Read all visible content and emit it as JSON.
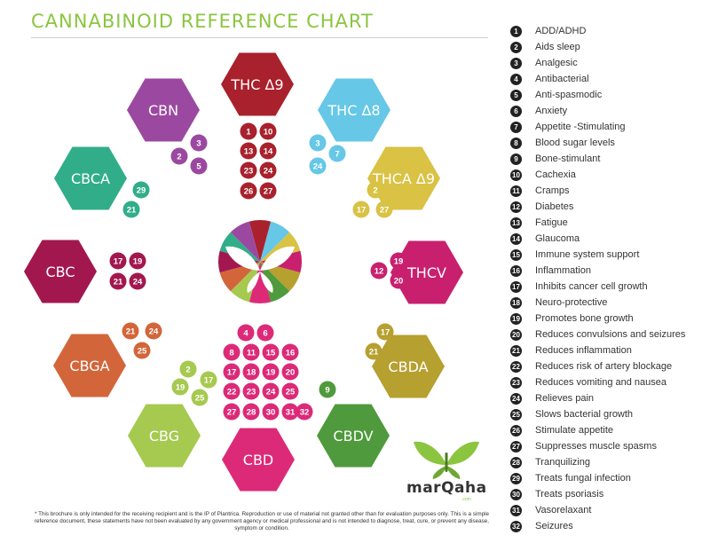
{
  "title": "CANNABINOID REFERENCE CHART",
  "cannabinoids": [
    {
      "name": "THC Δ9",
      "color": "#a8212c",
      "benefits": [
        1,
        10,
        13,
        14,
        23,
        24,
        26,
        27
      ]
    },
    {
      "name": "THC Δ8",
      "color": "#66c7e6",
      "benefits": [
        3,
        7,
        24
      ]
    },
    {
      "name": "THCA Δ9",
      "color": "#d9c244",
      "benefits": [
        2,
        17,
        27
      ]
    },
    {
      "name": "THCV",
      "color": "#c8206e",
      "benefits": [
        12,
        19,
        20
      ]
    },
    {
      "name": "CBDA",
      "color": "#b6a030",
      "benefits": [
        17,
        21
      ]
    },
    {
      "name": "CBDV",
      "color": "#4f9a3c",
      "benefits": [
        9
      ]
    },
    {
      "name": "CBD",
      "color": "#dc2a78",
      "benefits": [
        4,
        6,
        8,
        11,
        15,
        16,
        17,
        18,
        19,
        20,
        22,
        23,
        24,
        25,
        27,
        28,
        30,
        31,
        32
      ]
    },
    {
      "name": "CBG",
      "color": "#a6c950",
      "benefits": [
        2,
        17,
        19,
        25
      ]
    },
    {
      "name": "CBGA",
      "color": "#d2663a",
      "benefits": [
        21,
        24,
        25
      ]
    },
    {
      "name": "CBC",
      "color": "#a3174f",
      "benefits": [
        17,
        19,
        21,
        24
      ]
    },
    {
      "name": "CBCA",
      "color": "#32ad8a",
      "benefits": [
        21,
        29
      ]
    },
    {
      "name": "CBN",
      "color": "#9b49a0",
      "benefits": [
        2,
        3,
        5
      ]
    }
  ],
  "legend": [
    {
      "num": 1,
      "label": "ADD/ADHD"
    },
    {
      "num": 2,
      "label": "Aids sleep"
    },
    {
      "num": 3,
      "label": "Analgesic"
    },
    {
      "num": 4,
      "label": "Antibacterial"
    },
    {
      "num": 5,
      "label": "Anti-spasmodic"
    },
    {
      "num": 6,
      "label": "Anxiety"
    },
    {
      "num": 7,
      "label": "Appetite -Stimulating"
    },
    {
      "num": 8,
      "label": "Blood sugar levels"
    },
    {
      "num": 9,
      "label": "Bone-stimulant"
    },
    {
      "num": 10,
      "label": "Cachexia"
    },
    {
      "num": 11,
      "label": "Cramps"
    },
    {
      "num": 12,
      "label": "Diabetes"
    },
    {
      "num": 13,
      "label": "Fatigue"
    },
    {
      "num": 14,
      "label": "Glaucoma"
    },
    {
      "num": 15,
      "label": "Immune system support"
    },
    {
      "num": 16,
      "label": "Inflammation"
    },
    {
      "num": 17,
      "label": "Inhibits cancer cell growth"
    },
    {
      "num": 18,
      "label": "Neuro-protective"
    },
    {
      "num": 19,
      "label": "Promotes bone growth"
    },
    {
      "num": 20,
      "label": "Reduces convulsions and seizures"
    },
    {
      "num": 21,
      "label": "Reduces inflammation"
    },
    {
      "num": 22,
      "label": "Reduces risk of artery blockage"
    },
    {
      "num": 23,
      "label": "Reduces vomiting and nausea"
    },
    {
      "num": 24,
      "label": "Relieves pain"
    },
    {
      "num": 25,
      "label": "Slows bacterial growth"
    },
    {
      "num": 26,
      "label": "Stimulate appetite"
    },
    {
      "num": 27,
      "label": "Suppresses muscle spasms"
    },
    {
      "num": 28,
      "label": "Tranquilizing"
    },
    {
      "num": 29,
      "label": "Treats fungal infection"
    },
    {
      "num": 30,
      "label": "Treats psoriasis"
    },
    {
      "num": 31,
      "label": "Vasorelaxant"
    },
    {
      "num": 32,
      "label": "Seizures"
    }
  ],
  "footnote": "* This brochure is only intended for the receiving recipient and is the IP of Plantrica. Reproduction or use of material not granted other than for evaluation purposes only. This is a simple reference document, these statements have not been evaluated by any government agency or medical professional and  is not intended to diagnose, treat, cure, or prevent any disease, symptom or condition.",
  "brand": {
    "name": "marQaha",
    "domain": ".com",
    "color": "#8bc53f"
  },
  "flower_colors": [
    "#a8212c",
    "#66c7e6",
    "#d9c244",
    "#c8206e",
    "#b6a030",
    "#4f9a3c",
    "#dc2a78",
    "#a6c950",
    "#d2663a",
    "#a3174f",
    "#32ad8a",
    "#9b49a0"
  ]
}
